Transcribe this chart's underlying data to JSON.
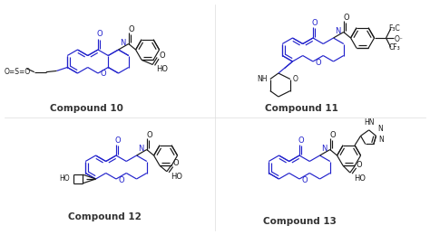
{
  "blue": "#2222cc",
  "black": "#1a1a1a",
  "label_color": "#333333",
  "label_fs": 7.5,
  "figsize": [
    4.74,
    2.6
  ],
  "dpi": 100,
  "compounds": [
    "Compound 10",
    "Compound 11",
    "Compound 12",
    "Compound 13"
  ]
}
